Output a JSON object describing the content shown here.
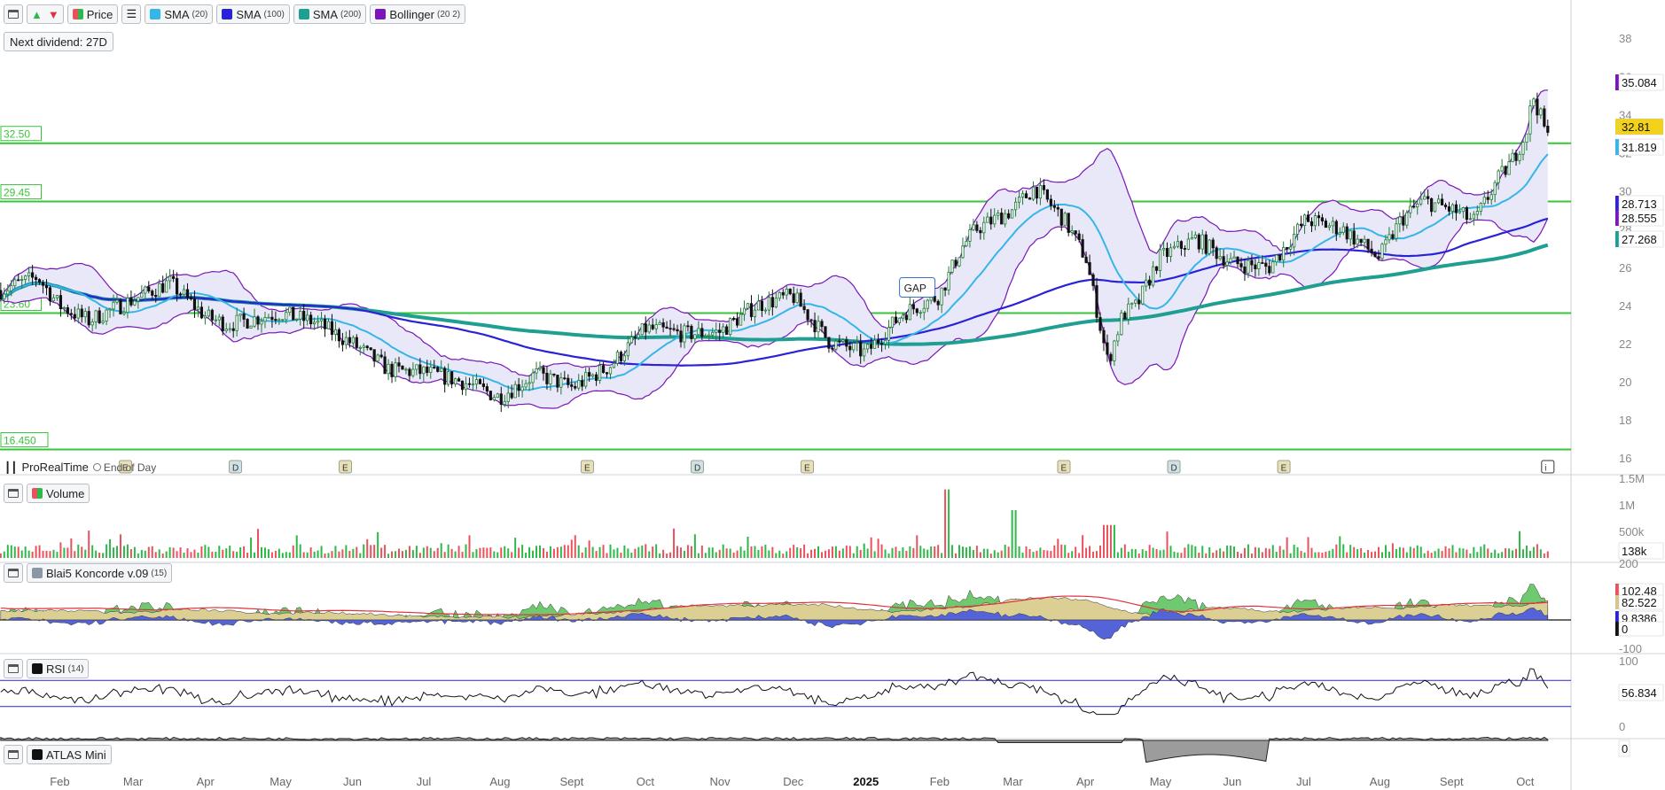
{
  "toolbar": {
    "price_label": "Price",
    "sma20": {
      "name": "SMA",
      "param": "(20)",
      "color": "#35b6e8"
    },
    "sma100": {
      "name": "SMA",
      "param": "(100)",
      "color": "#2a22d6"
    },
    "sma200": {
      "name": "SMA",
      "param": "(200)",
      "color": "#1f9e92"
    },
    "bollinger": {
      "name": "Bollinger",
      "param": "(20 2)",
      "color": "#7a16b8"
    },
    "icons": [
      "window-icon",
      "up-arrow-icon",
      "down-arrow-icon",
      "list-icon"
    ]
  },
  "dividend_badge": "Next dividend: 27D",
  "provider": {
    "name": "ProRealTime",
    "mode": "End of Day"
  },
  "colors": {
    "support": "#38c43a",
    "up": "#2fb84a",
    "down": "#e8525e",
    "bg": "#ffffff",
    "axis_text": "#666666",
    "grid": "#e9edf2"
  },
  "chart_data": [
    {
      "type": "candlestick",
      "panel": "price",
      "ylim": [
        15.5,
        38.8
      ],
      "y_ticks": [
        "16",
        "18",
        "20",
        "22",
        "24",
        "26",
        "28",
        "30",
        "32",
        "34",
        "36",
        "38"
      ],
      "x_ticks": [
        "Feb",
        "Mar",
        "Apr",
        "May",
        "Jun",
        "Jul",
        "Aug",
        "Sept",
        "Oct",
        "Nov",
        "Dec",
        "2025",
        "Feb",
        "Mar",
        "Apr",
        "May",
        "Jun",
        "Jul",
        "Aug",
        "Sept",
        "Oct"
      ],
      "x_tick_months": [
        1,
        2,
        3,
        4,
        5,
        6,
        7,
        8,
        9,
        10,
        11,
        12,
        13,
        14,
        15,
        16,
        17,
        18,
        19,
        20,
        21
      ],
      "price_path": {
        "months": [
          0,
          0.7,
          1,
          1.4,
          2,
          2.5,
          3,
          3.3,
          4,
          4.5,
          5,
          5.5,
          6,
          6.5,
          7,
          7.5,
          8,
          8.5,
          9,
          9.5,
          10,
          10.5,
          11,
          11.5,
          12,
          12.5,
          13,
          13.3,
          13.5,
          14,
          14.3,
          14.7,
          15,
          15.3,
          15.5,
          15.7,
          16,
          16.5,
          17,
          17.5,
          18,
          18.5,
          19,
          19.3,
          19.6,
          20,
          20.3,
          20.6,
          20.8,
          21,
          21.1,
          21.3
        ],
        "prices": [
          24.5,
          25.5,
          24.0,
          23.2,
          24.3,
          25.2,
          23.4,
          23.0,
          23.6,
          23.1,
          22.0,
          20.6,
          20.5,
          20.0,
          19.2,
          20.4,
          19.7,
          20.8,
          22.8,
          22.5,
          22.6,
          24.0,
          24.5,
          22.1,
          21.5,
          23.6,
          24.5,
          27.0,
          28.0,
          29.0,
          30.2,
          28.5,
          26.5,
          21.0,
          23.5,
          24.0,
          26.5,
          27.5,
          26.2,
          26.0,
          28.5,
          28.0,
          26.5,
          28.5,
          29.5,
          29.0,
          28.4,
          30.5,
          31.5,
          33.0,
          35.0,
          32.8
        ]
      },
      "horizontal_levels": [
        {
          "label": "32.50",
          "value": 32.5
        },
        {
          "label": "29.45",
          "value": 29.45
        },
        {
          "label": "23.60",
          "value": 23.6
        },
        {
          "label": "16.450",
          "value": 16.45
        }
      ],
      "last_values": [
        {
          "label": "35.084",
          "series": "Bollinger upper",
          "color": "#7a16b8"
        },
        {
          "label": "32.81",
          "series": "Price",
          "color": "#f2d21a"
        },
        {
          "label": "31.819",
          "series": "SMA (20)",
          "color": "#35b6e8"
        },
        {
          "label": "28.713",
          "series": "SMA (100)",
          "color": "#2a22d6"
        },
        {
          "label": "28.555",
          "series": "Bollinger lower",
          "color": "#7a16b8"
        },
        {
          "label": "27.268",
          "series": "SMA (200)",
          "color": "#1f9e92"
        }
      ],
      "annotations": [
        {
          "label": "GAP",
          "month": 12.7,
          "price": 24.9
        }
      ],
      "events": [
        {
          "label": "E",
          "month": 1.9
        },
        {
          "label": "D",
          "month": 3.4
        },
        {
          "label": "E",
          "month": 4.9
        },
        {
          "label": "E",
          "month": 8.2
        },
        {
          "label": "D",
          "month": 9.7
        },
        {
          "label": "E",
          "month": 11.2
        },
        {
          "label": "E",
          "month": 14.7
        },
        {
          "label": "D",
          "month": 16.2
        },
        {
          "label": "E",
          "month": 17.7
        },
        {
          "label": "i",
          "month": 21.3
        }
      ]
    },
    {
      "type": "bar",
      "panel": "volume",
      "title": "Volume",
      "y_ticks": [
        "500k",
        "1M",
        "1.5M"
      ],
      "ylim": [
        0,
        1500000
      ],
      "last_value": "138k"
    },
    {
      "type": "area",
      "panel": "koncorde",
      "title": "Blai5 Koncorde v.09",
      "param": "(15)",
      "y_ticks": [
        "-100",
        "0",
        "200"
      ],
      "ylim": [
        -100,
        200
      ],
      "last_values": [
        {
          "label": "102.48",
          "color": "#e8525e"
        },
        {
          "label": "82.522",
          "color": "#d9c58c"
        },
        {
          "label": "9.8386",
          "color": "#2a22d6"
        },
        {
          "label": "0",
          "color": "#111111"
        }
      ]
    },
    {
      "type": "line",
      "panel": "rsi",
      "title": "RSI",
      "param": "(14)",
      "y_ticks": [
        "0",
        "100"
      ],
      "ylim": [
        0,
        100
      ],
      "levels": [
        70,
        30
      ],
      "last_value": "56.834"
    },
    {
      "type": "area",
      "panel": "atlas",
      "title": "ATLAS Mini",
      "last_value": "0"
    }
  ]
}
